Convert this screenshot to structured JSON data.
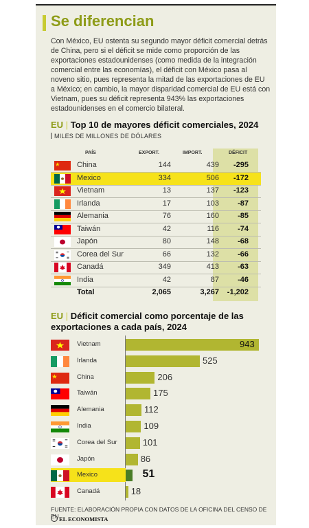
{
  "header": {
    "title": "Se diferencian",
    "intro": "Con México, EU ostenta su segundo mayor déficit comercial detrás de China, pero si el déficit se mide como proporción de las exportaciones estadounidenses (como medida de la integración comercial entre las economías), el déficit con México pasa al noveno sitio, pues representa la mitad de las exportaciones de EU a México; en cambio, la mayor disparidad comercial de EU está con Vietnam, pues su déficit representa 943% las exportaciones estadounidenses en el comercio bilateral."
  },
  "table": {
    "title_prefix": "EU",
    "title": "Top 10 de mayores déficit comerciales, 2024",
    "subtitle": "MILES DE MILLONES DE DÓLARES",
    "headers": {
      "country": "PAÍS",
      "exports": "EXPORT.",
      "imports": "IMPORT.",
      "deficit": "DÉFICIT"
    },
    "highlight_color": "#f6e21a",
    "rows": [
      {
        "country": "China",
        "exports": "144",
        "imports": "439",
        "deficit": "-295",
        "flag": "china-flag-icon"
      },
      {
        "country": "Mexico",
        "exports": "334",
        "imports": "506",
        "deficit": "-172",
        "flag": "mexico-flag-icon"
      },
      {
        "country": "Vietnam",
        "exports": "13",
        "imports": "137",
        "deficit": "-123",
        "flag": "vietnam-flag-icon"
      },
      {
        "country": "Irlanda",
        "exports": "17",
        "imports": "103",
        "deficit": "-87",
        "flag": "ireland-flag-icon"
      },
      {
        "country": "Alemania",
        "exports": "76",
        "imports": "160",
        "deficit": "-85",
        "flag": "germany-flag-icon"
      },
      {
        "country": "Taiwán",
        "exports": "42",
        "imports": "116",
        "deficit": "-74",
        "flag": "taiwan-flag-icon"
      },
      {
        "country": "Japón",
        "exports": "80",
        "imports": "148",
        "deficit": "-68",
        "flag": "japan-flag-icon"
      },
      {
        "country": "Corea del Sur",
        "exports": "66",
        "imports": "132",
        "deficit": "-66",
        "flag": "south-korea-flag-icon"
      },
      {
        "country": "Canadá",
        "exports": "349",
        "imports": "413",
        "deficit": "-63",
        "flag": "canada-flag-icon"
      },
      {
        "country": "India",
        "exports": "42",
        "imports": "87",
        "deficit": "-46",
        "flag": "india-flag-icon"
      }
    ],
    "total": {
      "label": "Total",
      "exports": "2,065",
      "imports": "3,267",
      "deficit": "-1,202"
    }
  },
  "chart_data": {
    "type": "bar",
    "orientation": "horizontal",
    "title_prefix": "EU",
    "title": "Déficit comercial como porcentaje de las exportaciones a cada país, 2024",
    "categories": [
      "Vietnam",
      "Irlanda",
      "China",
      "Taiwán",
      "Alemania",
      "India",
      "Corea del Sur",
      "Japón",
      "Mexico",
      "Canadá"
    ],
    "values": [
      943,
      525,
      206,
      175,
      112,
      109,
      101,
      86,
      51,
      18
    ],
    "highlight": "Mexico",
    "bar_color": "#b1b631",
    "highlight_bar_color": "#4a7d27",
    "highlight_row_color": "#f6e21a",
    "grid": false
  },
  "footer": {
    "source": "FUENTE: ELABORACIÓN PROPIA CON DATOS DE LA OFICINA DEL CENSO DE EU.",
    "logo": "EL ECONOMISTA"
  },
  "colors": {
    "accent": "#8e9c18",
    "background": "#eeeee3"
  }
}
